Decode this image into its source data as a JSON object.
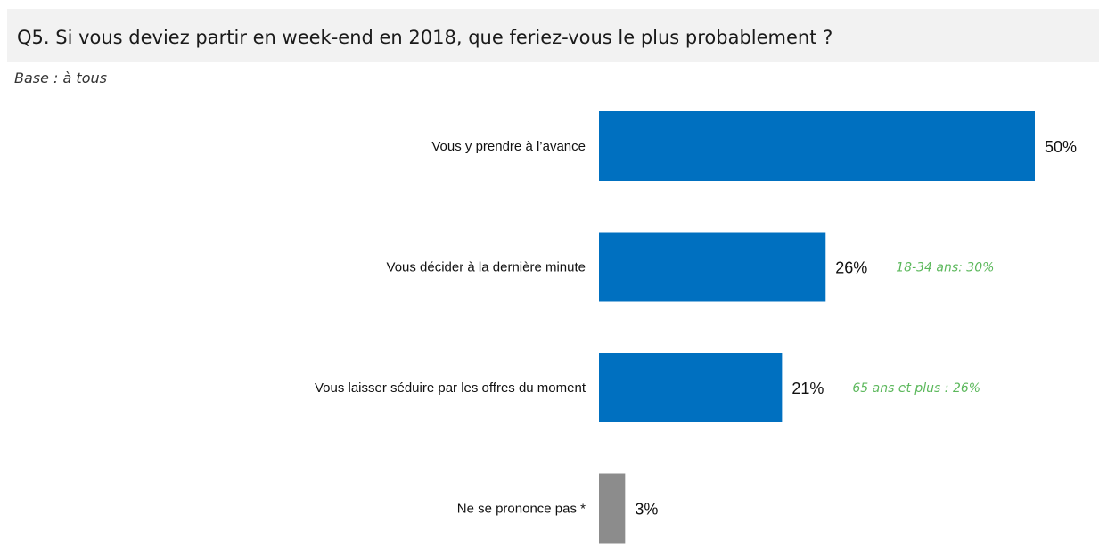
{
  "title": "Q5. Si vous deviez partir en week-end en 2018, que feriez-vous le plus probablement ?",
  "subtitle": "Base : à tous",
  "colors": {
    "bar": "#0070c0",
    "bar_nsp": "#8c8c8c",
    "note": "#5cb85c",
    "title_band": "#f2f2f2"
  },
  "chart_data": {
    "type": "bar",
    "orientation": "horizontal",
    "categories": [
      "Vous y prendre à l’avance",
      "Vous décider à la dernière minute",
      "Vous laisser séduire par les offres du moment",
      "Ne se prononce pas *"
    ],
    "values": [
      50,
      26,
      21,
      3
    ],
    "value_labels": [
      "50%",
      "26%",
      "21%",
      "3%"
    ],
    "annotations": [
      "",
      "18-34 ans: 30%",
      "65 ans et plus : 26%",
      ""
    ],
    "unit": "%",
    "xlim": [
      0,
      50
    ],
    "grid": false,
    "legend": "none"
  }
}
